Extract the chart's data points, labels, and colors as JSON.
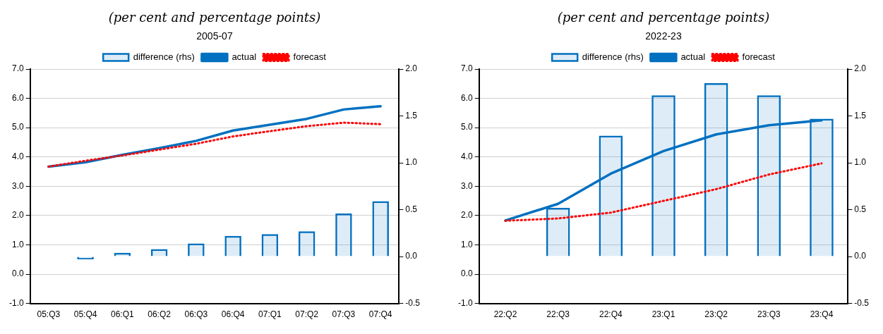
{
  "chart_data": [
    {
      "type": "bar",
      "title": "(per cent and percentage points)",
      "subtitle": "2005-07",
      "categories": [
        "05:Q3",
        "05:Q4",
        "06:Q1",
        "06:Q2",
        "06:Q3",
        "06:Q4",
        "07:Q1",
        "07:Q2",
        "07:Q3",
        "07:Q4"
      ],
      "series": [
        {
          "name": "difference (rhs)",
          "type": "bar",
          "axis": "y2",
          "color": "#0070c0",
          "values": [
            null,
            -0.03,
            0.04,
            0.08,
            0.14,
            0.22,
            0.24,
            0.27,
            0.46,
            0.59
          ]
        },
        {
          "name": "actual",
          "type": "line",
          "color": "#0070c0",
          "line_style": "solid",
          "values": [
            3.67,
            3.82,
            4.07,
            4.3,
            4.55,
            4.9,
            5.1,
            5.3,
            5.62,
            5.73
          ]
        },
        {
          "name": "forecast",
          "type": "line",
          "color": "#ff0000",
          "line_style": "dotted",
          "values": [
            3.67,
            3.87,
            4.05,
            4.25,
            4.45,
            4.7,
            4.88,
            5.05,
            5.17,
            5.12
          ]
        }
      ],
      "ylim": [
        -1,
        7
      ],
      "yticks": [
        {
          "value": -1,
          "label": "-1.0"
        },
        {
          "value": 0,
          "label": "0.0"
        },
        {
          "value": 1,
          "label": "1.0"
        },
        {
          "value": 2,
          "label": "2.0"
        },
        {
          "value": 3,
          "label": "3.0"
        },
        {
          "value": 4,
          "label": "4.0"
        },
        {
          "value": 5,
          "label": "5.0"
        },
        {
          "value": 6,
          "label": "6.0"
        },
        {
          "value": 7,
          "label": "7.0"
        }
      ],
      "y2lim": [
        -0.5,
        2
      ],
      "y2ticks": [
        {
          "value": -0.5,
          "label": "-0.5"
        },
        {
          "value": 0,
          "label": "0.0"
        },
        {
          "value": 0.5,
          "label": "0.5"
        },
        {
          "value": 1,
          "label": "1.0"
        },
        {
          "value": 1.5,
          "label": "1.5"
        },
        {
          "value": 2,
          "label": "2.0"
        }
      ],
      "grid": "y",
      "legend": "top",
      "marker": "none"
    },
    {
      "type": "bar",
      "title": "(per cent and percentage points)",
      "subtitle": "2022-23",
      "categories": [
        "22:Q2",
        "22:Q3",
        "22:Q4",
        "23:Q1",
        "23:Q2",
        "23:Q3",
        "23:Q4"
      ],
      "series": [
        {
          "name": "difference (rhs)",
          "type": "bar",
          "axis": "y2",
          "color": "#0070c0",
          "values": [
            null,
            0.52,
            1.29,
            1.72,
            1.85,
            1.72,
            1.47
          ]
        },
        {
          "name": "actual",
          "type": "line",
          "color": "#0070c0",
          "line_style": "solid",
          "values": [
            1.83,
            2.4,
            3.43,
            4.2,
            4.77,
            5.08,
            5.25
          ]
        },
        {
          "name": "forecast",
          "type": "line",
          "color": "#ff0000",
          "line_style": "dotted",
          "values": [
            1.82,
            1.9,
            2.1,
            2.5,
            2.9,
            3.4,
            3.78
          ]
        }
      ],
      "ylim": [
        -1,
        7
      ],
      "yticks": [
        {
          "value": -1,
          "label": "-1.0"
        },
        {
          "value": 0,
          "label": "0.0"
        },
        {
          "value": 1,
          "label": "1.0"
        },
        {
          "value": 2,
          "label": "2.0"
        },
        {
          "value": 3,
          "label": "3.0"
        },
        {
          "value": 4,
          "label": "4.0"
        },
        {
          "value": 5,
          "label": "5.0"
        },
        {
          "value": 6,
          "label": "6.0"
        },
        {
          "value": 7,
          "label": "7.0"
        }
      ],
      "y2lim": [
        -0.5,
        2
      ],
      "y2ticks": [
        {
          "value": -0.5,
          "label": "-0.5"
        },
        {
          "value": 0,
          "label": "0.0"
        },
        {
          "value": 0.5,
          "label": "0.5"
        },
        {
          "value": 1,
          "label": "1.0"
        },
        {
          "value": 1.5,
          "label": "1.5"
        },
        {
          "value": 2,
          "label": "2.0"
        }
      ],
      "grid": "y",
      "legend": "top",
      "marker": "none"
    }
  ]
}
